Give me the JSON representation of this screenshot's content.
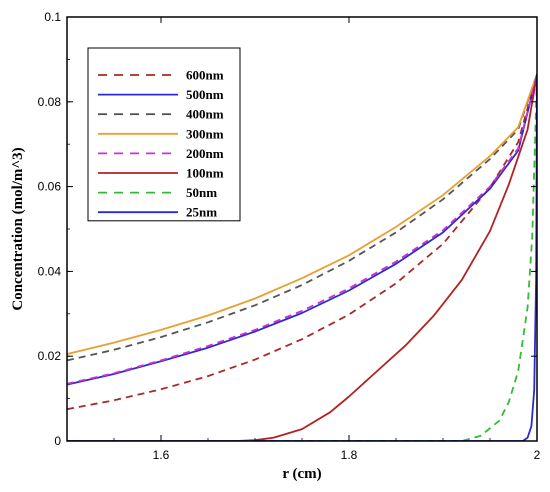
{
  "chart_data": {
    "type": "line",
    "xlabel": "r (cm)",
    "ylabel": "Concentration (mol/m^3)",
    "xlim": [
      1.5,
      2.0
    ],
    "ylim": [
      0,
      0.1
    ],
    "xticks": [
      1.6,
      1.8,
      2.0
    ],
    "xtick_labels": [
      "1.6",
      "1.8",
      "2"
    ],
    "yticks": [
      0,
      0.02,
      0.04,
      0.06,
      0.08,
      0.1
    ],
    "ytick_labels": [
      "0",
      "0.02",
      "0.04",
      "0.06",
      "0.08",
      "0.1"
    ],
    "grid": false,
    "legend_position": "top-left",
    "series": [
      {
        "name": "600nm",
        "color": "#a52a2a",
        "dash": "dashed",
        "x": [
          1.5,
          1.55,
          1.6,
          1.65,
          1.7,
          1.75,
          1.8,
          1.85,
          1.9,
          1.95,
          1.98,
          2.0
        ],
        "y": [
          0.0075,
          0.0096,
          0.0122,
          0.0153,
          0.0192,
          0.024,
          0.0298,
          0.0372,
          0.0465,
          0.0598,
          0.0705,
          0.0865
        ]
      },
      {
        "name": "500nm",
        "color": "#2a2ad4",
        "dash": "solid",
        "x": [
          1.5,
          1.55,
          1.6,
          1.65,
          1.7,
          1.75,
          1.8,
          1.85,
          1.9,
          1.95,
          1.98,
          2.0
        ],
        "y": [
          0.0133,
          0.0158,
          0.0188,
          0.022,
          0.0258,
          0.0302,
          0.0355,
          0.0418,
          0.0492,
          0.0595,
          0.0685,
          0.0865
        ]
      },
      {
        "name": "400nm",
        "color": "#555555",
        "dash": "dashed",
        "x": [
          1.5,
          1.55,
          1.6,
          1.65,
          1.7,
          1.75,
          1.8,
          1.85,
          1.9,
          1.95,
          1.98,
          2.0
        ],
        "y": [
          0.019,
          0.0215,
          0.0245,
          0.028,
          0.032,
          0.0368,
          0.0425,
          0.0492,
          0.057,
          0.0665,
          0.0735,
          0.0865
        ]
      },
      {
        "name": "300nm",
        "color": "#e8a030",
        "dash": "solid",
        "x": [
          1.5,
          1.55,
          1.6,
          1.65,
          1.7,
          1.75,
          1.8,
          1.85,
          1.9,
          1.95,
          1.98,
          2.0
        ],
        "y": [
          0.0205,
          0.0232,
          0.0262,
          0.0296,
          0.0336,
          0.0384,
          0.0438,
          0.0505,
          0.058,
          0.0672,
          0.074,
          0.0865
        ]
      },
      {
        "name": "200nm",
        "color": "#cc33cc",
        "dash": "dashed",
        "x": [
          1.5,
          1.55,
          1.6,
          1.65,
          1.7,
          1.75,
          1.8,
          1.85,
          1.9,
          1.95,
          1.98,
          2.0
        ],
        "y": [
          0.0135,
          0.016,
          0.019,
          0.0224,
          0.0262,
          0.0307,
          0.036,
          0.0423,
          0.0497,
          0.06,
          0.069,
          0.0865
        ]
      },
      {
        "name": "100nm",
        "color": "#b22222",
        "dash": "solid",
        "x": [
          1.5,
          1.68,
          1.7,
          1.72,
          1.75,
          1.78,
          1.8,
          1.83,
          1.86,
          1.89,
          1.92,
          1.95,
          1.97,
          1.99,
          2.0
        ],
        "y": [
          0,
          0,
          0.0002,
          0.0008,
          0.0028,
          0.0068,
          0.0105,
          0.0165,
          0.0225,
          0.0295,
          0.038,
          0.0495,
          0.0605,
          0.0735,
          0.0865
        ]
      },
      {
        "name": "50nm",
        "color": "#33bb33",
        "dash": "dashed",
        "x": [
          1.5,
          1.92,
          1.94,
          1.96,
          1.97,
          1.98,
          1.99,
          1.995,
          2.0
        ],
        "y": [
          0,
          0,
          0.0012,
          0.0048,
          0.0092,
          0.0165,
          0.0315,
          0.0485,
          0.0865
        ]
      },
      {
        "name": "25nm",
        "color": "#2a2ad4",
        "dash": "solid",
        "x": [
          1.5,
          1.985,
          1.99,
          1.994,
          1.997,
          1.999,
          2.0
        ],
        "y": [
          0,
          0,
          0.0008,
          0.0035,
          0.012,
          0.038,
          0.0865
        ]
      }
    ]
  }
}
